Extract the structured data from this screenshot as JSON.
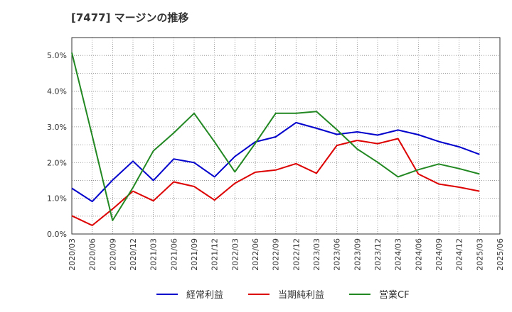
{
  "chart_data": {
    "type": "line",
    "title": "[7477]  マージンの推移",
    "categories": [
      "2020/03",
      "2020/06",
      "2020/09",
      "2020/12",
      "2021/03",
      "2021/06",
      "2021/09",
      "2021/12",
      "2022/03",
      "2022/06",
      "2022/09",
      "2022/12",
      "2023/03",
      "2023/06",
      "2023/09",
      "2023/12",
      "2024/03",
      "2024/06",
      "2024/09",
      "2024/12",
      "2025/03",
      "2025/06"
    ],
    "y_ticks": [
      "0.0%",
      "1.0%",
      "2.0%",
      "3.0%",
      "4.0%",
      "5.0%"
    ],
    "ylim": [
      0,
      5.5
    ],
    "y_unit": "%",
    "grid": true,
    "legend_position": "bottom",
    "series": [
      {
        "name": "経常利益",
        "color": "#0000cc",
        "values": [
          1.28,
          0.91,
          1.51,
          2.04,
          1.5,
          2.1,
          2.0,
          1.6,
          2.17,
          2.58,
          2.72,
          3.12,
          2.96,
          2.79,
          2.86,
          2.77,
          2.91,
          2.78,
          2.59,
          2.44,
          2.23,
          null
        ]
      },
      {
        "name": "当期純利益",
        "color": "#dd0000",
        "values": [
          0.51,
          0.24,
          0.7,
          1.2,
          0.93,
          1.46,
          1.33,
          0.95,
          1.42,
          1.73,
          1.79,
          1.97,
          1.7,
          2.48,
          2.62,
          2.53,
          2.67,
          1.68,
          1.4,
          1.31,
          1.2,
          null
        ]
      },
      {
        "name": "営業CF",
        "color": "#228822",
        "values": [
          5.08,
          2.75,
          0.38,
          1.3,
          2.33,
          2.83,
          3.38,
          2.58,
          1.74,
          2.54,
          3.38,
          3.38,
          3.43,
          2.92,
          2.38,
          2.01,
          1.6,
          1.8,
          1.96,
          1.83,
          1.68,
          null
        ]
      }
    ]
  }
}
